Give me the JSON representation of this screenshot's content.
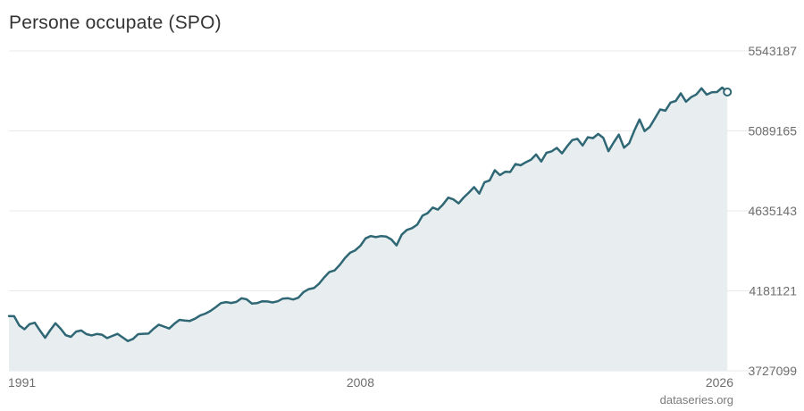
{
  "chart_data": {
    "type": "area",
    "title": "Persone occupate (SPO)",
    "xlabel": "",
    "ylabel": "",
    "x_tick_labels": [
      "1991",
      "2008",
      "2026"
    ],
    "y_tick_labels": [
      "5543187",
      "5089165",
      "4635143",
      "4181121",
      "3727099"
    ],
    "ylim": [
      3727099,
      5543187
    ],
    "xlim": [
      1991.0,
      2026.0
    ],
    "grid": true,
    "legend": "none",
    "colors": {
      "line": "#2f6775",
      "fill": "#e8eef0",
      "grid": "#e9e9e9"
    },
    "x": [
      1991.0,
      1991.25,
      1991.5,
      1991.75,
      1992.0,
      1992.25,
      1992.5,
      1992.75,
      1993.0,
      1993.25,
      1993.5,
      1993.75,
      1994.0,
      1994.25,
      1994.5,
      1994.75,
      1995.0,
      1995.25,
      1995.5,
      1995.75,
      1996.0,
      1996.25,
      1996.5,
      1996.75,
      1997.0,
      1997.25,
      1997.5,
      1997.75,
      1998.0,
      1998.25,
      1998.5,
      1998.75,
      1999.0,
      1999.25,
      1999.5,
      1999.75,
      2000.0,
      2000.25,
      2000.5,
      2000.75,
      2001.0,
      2001.25,
      2001.5,
      2001.75,
      2002.0,
      2002.25,
      2002.5,
      2002.75,
      2003.0,
      2003.25,
      2003.5,
      2003.75,
      2004.0,
      2004.25,
      2004.5,
      2004.75,
      2005.0,
      2005.25,
      2005.5,
      2005.75,
      2006.0,
      2006.25,
      2006.5,
      2006.75,
      2007.0,
      2007.25,
      2007.5,
      2007.75,
      2008.0,
      2008.25,
      2008.5,
      2008.75,
      2009.0,
      2009.25,
      2009.5,
      2009.75,
      2010.0,
      2010.25,
      2010.5,
      2010.75,
      2011.0,
      2011.25,
      2011.5,
      2011.75,
      2012.0,
      2012.25,
      2012.5,
      2012.75,
      2013.0,
      2013.25,
      2013.5,
      2013.75,
      2014.0,
      2014.25,
      2014.5,
      2014.75,
      2015.0,
      2015.25,
      2015.5,
      2015.75,
      2016.0,
      2016.25,
      2016.5,
      2016.75,
      2017.0,
      2017.25,
      2017.5,
      2017.75,
      2018.0,
      2018.25,
      2018.5,
      2018.75,
      2019.0,
      2019.25,
      2019.5,
      2019.75,
      2020.0,
      2020.25,
      2020.5,
      2020.75,
      2021.0,
      2021.25,
      2021.5,
      2021.75,
      2022.0,
      2022.25,
      2022.5,
      2022.75,
      2023.0,
      2023.25,
      2023.5,
      2023.75,
      2024.0,
      2024.25,
      2024.5,
      2024.75,
      2025.0,
      2025.25,
      2025.5,
      2025.75
    ],
    "y": [
      4038000,
      4037000,
      3985000,
      3963000,
      3992000,
      4000000,
      3956000,
      3915000,
      3958000,
      3997000,
      3966000,
      3929000,
      3920000,
      3950000,
      3956000,
      3935000,
      3928000,
      3936000,
      3932000,
      3913000,
      3925000,
      3937000,
      3917000,
      3896000,
      3908000,
      3935000,
      3937000,
      3938000,
      3966000,
      3989000,
      3978000,
      3967000,
      3994000,
      4016000,
      4012000,
      4010000,
      4023000,
      4041000,
      4052000,
      4067000,
      4088000,
      4111000,
      4117000,
      4112000,
      4118000,
      4139000,
      4133000,
      4109000,
      4111000,
      4122000,
      4121000,
      4115000,
      4122000,
      4137000,
      4139000,
      4132000,
      4142000,
      4174000,
      4191000,
      4197000,
      4221000,
      4257000,
      4288000,
      4297000,
      4328000,
      4367000,
      4397000,
      4411000,
      4437000,
      4479000,
      4492000,
      4486000,
      4492000,
      4489000,
      4473000,
      4439000,
      4500000,
      4527000,
      4537000,
      4557000,
      4608000,
      4622000,
      4654000,
      4642000,
      4672000,
      4710000,
      4700000,
      4678000,
      4711000,
      4739000,
      4770000,
      4733000,
      4797000,
      4808000,
      4866000,
      4838000,
      4857000,
      4856000,
      4901000,
      4894000,
      4911000,
      4926000,
      4955000,
      4915000,
      4965000,
      4973000,
      4993000,
      4962000,
      5002000,
      5037000,
      5044000,
      5006000,
      5053000,
      5048000,
      5072000,
      5049000,
      4974000,
      5023000,
      5068000,
      4994000,
      5019000,
      5091000,
      5154000,
      5088000,
      5112000,
      5161000,
      5211000,
      5204000,
      5250000,
      5259000,
      5302000,
      5255000,
      5281000,
      5296000,
      5331000,
      5295000,
      5309000,
      5310000,
      5335000,
      5310000
    ]
  },
  "credit": "dataseries.org"
}
